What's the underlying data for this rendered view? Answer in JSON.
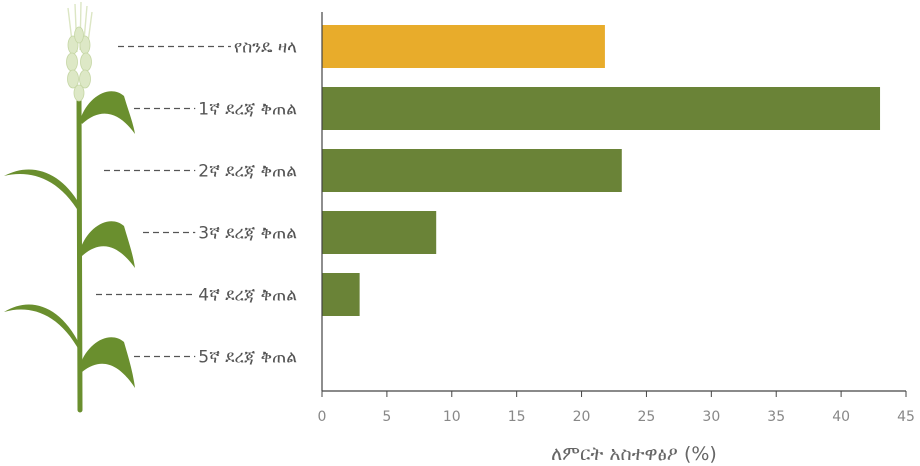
{
  "chart_data": {
    "type": "bar",
    "orientation": "horizontal",
    "categories": [
      "የስንዴ ዛላ",
      "1ኛ ደረጃ ቅጠል",
      "2ኛ ደረጃ ቅጠል",
      "3ኛ ደረጃ ቅጠል",
      "4ኛ ደረጃ ቅጠል",
      "5ኛ ደረጃ ቅጠል"
    ],
    "values": [
      21.8,
      43,
      23.1,
      8.8,
      2.9,
      0
    ],
    "bar_colors": [
      "#E8AC2B",
      "#6A8337",
      "#6A8337",
      "#6A8337",
      "#6A8337",
      "#6A8337"
    ],
    "xlabel": "ለምርት አስተዋፅዖ (%)",
    "xlim": [
      0,
      45
    ],
    "xticks": [
      0,
      5,
      10,
      15,
      20,
      25,
      30,
      35,
      40,
      45
    ],
    "grid": false,
    "decoration": "wheat-plant-illustration"
  }
}
